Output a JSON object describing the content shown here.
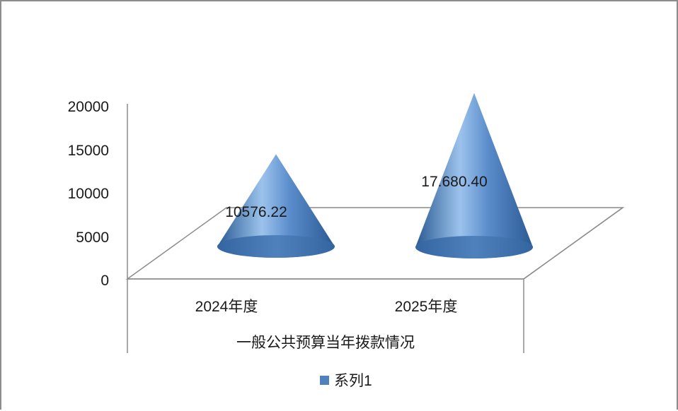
{
  "chart_data": {
    "type": "bar",
    "shape": "cone-3d",
    "categories": [
      "2024年度",
      "2025年度"
    ],
    "series": [
      {
        "name": "系列1",
        "values": [
          10576.22,
          17680.4
        ],
        "labels": [
          "10576.22",
          "17.680.40"
        ]
      }
    ],
    "xlabel": "一般公共预算当年拨款情况",
    "ylabel": "",
    "ylim": [
      0,
      20000
    ],
    "yticks": [
      "0",
      "5000",
      "10000",
      "15000",
      "20000"
    ],
    "legend": {
      "position": "bottom",
      "entries": [
        "系列1"
      ]
    },
    "colors": {
      "cone_base": "#4f81bd",
      "cone_dark": "#2a5a93",
      "cone_light": "#9cc3ec",
      "legend_swatch": "#4f81bd",
      "axis": "#8c8c8c"
    }
  }
}
